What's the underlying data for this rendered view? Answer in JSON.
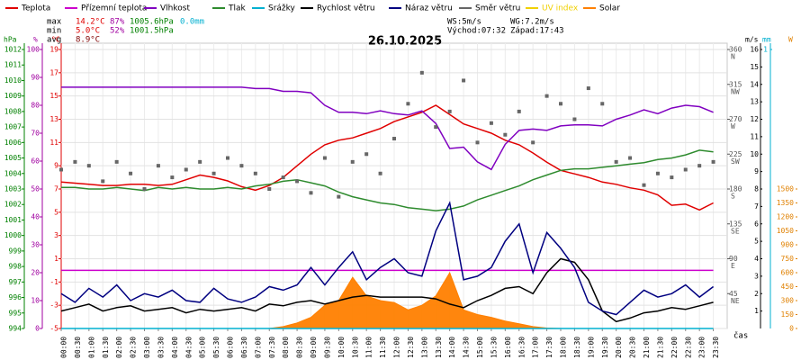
{
  "chart_data": {
    "type": "line",
    "title": "26.10.2025",
    "x_label": "čas",
    "categories": [
      "00:00",
      "00:30",
      "01:00",
      "01:30",
      "02:00",
      "02:30",
      "03:00",
      "03:30",
      "04:00",
      "04:30",
      "05:00",
      "05:30",
      "06:00",
      "06:30",
      "07:00",
      "07:30",
      "08:00",
      "08:30",
      "09:00",
      "09:30",
      "10:00",
      "10:30",
      "11:00",
      "11:30",
      "12:00",
      "12:30",
      "13:00",
      "13:30",
      "14:00",
      "14:30",
      "15:00",
      "15:30",
      "16:00",
      "16:30",
      "17:00",
      "17:30",
      "18:00",
      "18:30",
      "19:00",
      "19:30",
      "20:00",
      "20:30",
      "21:00",
      "21:30",
      "22:00",
      "22:30",
      "23:00",
      "23:30"
    ],
    "grid": true,
    "axes": {
      "hpa": {
        "title": "hPa",
        "color": "#008000",
        "side": "left",
        "lim": [
          994,
          1012
        ],
        "ticks": [
          994,
          995,
          996,
          997,
          998,
          999,
          1000,
          1001,
          1002,
          1003,
          1004,
          1005,
          1006,
          1007,
          1008,
          1009,
          1010,
          1011,
          1012
        ]
      },
      "pct": {
        "title": "%",
        "color": "#a000a0",
        "side": "left",
        "lim": [
          0,
          100
        ],
        "ticks": [
          0,
          10,
          20,
          30,
          40,
          50,
          60,
          70,
          80,
          90,
          100
        ]
      },
      "degc": {
        "title": "°C",
        "color": "#e00000",
        "side": "left",
        "lim": [
          -5,
          19
        ],
        "ticks": [
          -5,
          -3,
          -1,
          1,
          3,
          5,
          7,
          9,
          11,
          13,
          15,
          17,
          19
        ]
      },
      "dir": {
        "color": "#555555",
        "side": "right",
        "lim": [
          0,
          360
        ],
        "ticks": [
          {
            "value": 45,
            "label": "45",
            "compass": "NE"
          },
          {
            "value": 90,
            "label": "90",
            "compass": "E"
          },
          {
            "value": 135,
            "label": "135",
            "compass": "SE"
          },
          {
            "value": 180,
            "label": "180",
            "compass": "S"
          },
          {
            "value": 225,
            "label": "225",
            "compass": "SW"
          },
          {
            "value": 270,
            "label": "270",
            "compass": "W"
          },
          {
            "value": 315,
            "label": "315",
            "compass": "NW"
          },
          {
            "value": 360,
            "label": "360",
            "compass": "N"
          }
        ]
      },
      "ms": {
        "title": "m/s",
        "color": "#000000",
        "side": "right",
        "lim": [
          0,
          16
        ],
        "ticks": [
          1,
          2,
          3,
          4,
          5,
          6,
          7,
          8,
          9,
          10,
          11,
          12,
          13,
          14,
          15,
          16
        ]
      },
      "mm": {
        "title": "mm",
        "color": "#00b0d0",
        "side": "right",
        "lim": [
          0,
          1
        ],
        "ticks": [
          1
        ]
      },
      "w": {
        "title": "W",
        "color": "#e08000",
        "side": "right",
        "lim": [
          0,
          3000
        ],
        "ticks": [
          0,
          150,
          300,
          450,
          600,
          750,
          900,
          1050,
          1200,
          1350,
          1500
        ]
      }
    },
    "series": [
      {
        "name": "Teplota",
        "color": "#e00000",
        "axis": "degc",
        "style": "line",
        "values": [
          7.6,
          7.5,
          7.4,
          7.3,
          7.3,
          7.4,
          7.4,
          7.3,
          7.4,
          7.8,
          8.2,
          8.0,
          7.7,
          7.2,
          6.9,
          7.3,
          8.0,
          9.0,
          10.0,
          10.8,
          11.2,
          11.4,
          11.8,
          12.2,
          12.8,
          13.2,
          13.6,
          14.2,
          13.4,
          12.6,
          12.2,
          11.8,
          11.2,
          10.8,
          10.1,
          9.3,
          8.6,
          8.3,
          8.0,
          7.6,
          7.4,
          7.1,
          6.9,
          6.5,
          5.6,
          5.7,
          5.2,
          5.8
        ]
      },
      {
        "name": "Přízemní teplota",
        "color": "#cc00cc",
        "axis": "degc",
        "style": "line",
        "values": [
          0,
          0,
          0,
          0,
          0,
          0,
          0,
          0,
          0,
          0,
          0,
          0,
          0,
          0,
          0,
          0,
          0,
          0,
          0,
          0,
          0,
          0,
          0,
          0,
          0,
          0,
          0,
          0,
          0,
          0,
          0,
          0,
          0,
          0,
          0,
          0,
          0,
          0,
          0,
          0,
          0,
          0,
          0,
          0,
          0,
          0,
          0,
          0
        ]
      },
      {
        "name": "Vlhkost",
        "color": "#8000c0",
        "axis": "pct",
        "style": "line",
        "values": [
          86.5,
          86.5,
          86.5,
          86.5,
          86.5,
          86.5,
          86.5,
          86.5,
          86.5,
          86.5,
          86.5,
          86.5,
          86.5,
          86.5,
          86,
          86,
          85,
          85,
          84.5,
          80,
          77.5,
          77.5,
          77,
          78,
          77,
          76.5,
          78,
          73.5,
          64.5,
          65,
          59.7,
          57,
          66,
          71,
          71.5,
          71,
          72.6,
          73,
          73,
          72.6,
          75,
          76.5,
          78.4,
          77,
          79,
          80,
          79.5,
          77.5
        ]
      },
      {
        "name": "Tlak",
        "color": "#2e8b2e",
        "axis": "hpa",
        "style": "line",
        "values": [
          1003.1,
          1003.1,
          1003.0,
          1003.0,
          1003.1,
          1003.0,
          1002.9,
          1003.1,
          1003.0,
          1003.1,
          1003.0,
          1003.0,
          1003.1,
          1003.0,
          1003.2,
          1003.3,
          1003.5,
          1003.6,
          1003.4,
          1003.2,
          1002.8,
          1002.5,
          1002.3,
          1002.1,
          1002.0,
          1001.8,
          1001.7,
          1001.6,
          1001.7,
          1001.9,
          1002.3,
          1002.6,
          1002.9,
          1003.2,
          1003.6,
          1003.9,
          1004.2,
          1004.3,
          1004.3,
          1004.4,
          1004.5,
          1004.6,
          1004.7,
          1004.9,
          1005.0,
          1005.2,
          1005.5,
          1005.4
        ]
      },
      {
        "name": "Srážky",
        "color": "#00b0d0",
        "axis": "mm",
        "style": "line",
        "values": [
          0,
          0,
          0,
          0,
          0,
          0,
          0,
          0,
          0,
          0,
          0,
          0,
          0,
          0,
          0,
          0,
          0,
          0,
          0,
          0,
          0,
          0,
          0,
          0,
          0,
          0,
          0,
          0,
          0,
          0,
          0,
          0,
          0,
          0,
          0,
          0,
          0,
          0,
          0,
          0,
          0,
          0,
          0,
          0,
          0,
          0,
          0,
          0
        ]
      },
      {
        "name": "Rychlost větru",
        "color": "#000000",
        "axis": "ms",
        "style": "line",
        "values": [
          1.0,
          1.2,
          1.4,
          1.0,
          1.2,
          1.3,
          1.0,
          1.1,
          1.2,
          0.9,
          1.1,
          1.0,
          1.1,
          1.2,
          1.0,
          1.4,
          1.3,
          1.5,
          1.6,
          1.4,
          1.6,
          1.8,
          1.9,
          1.8,
          1.8,
          1.8,
          1.8,
          1.7,
          1.4,
          1.2,
          1.6,
          1.9,
          2.3,
          2.4,
          2.0,
          3.2,
          4.0,
          3.8,
          2.8,
          1.0,
          0.4,
          0.6,
          0.9,
          1.0,
          1.2,
          1.1,
          1.3,
          1.5
        ]
      },
      {
        "name": "Náraz větru",
        "color": "#000080",
        "axis": "ms",
        "style": "line",
        "values": [
          2.0,
          1.5,
          2.3,
          1.8,
          2.5,
          1.6,
          2.0,
          1.8,
          2.2,
          1.6,
          1.5,
          2.3,
          1.7,
          1.5,
          1.8,
          2.4,
          2.2,
          2.5,
          3.5,
          2.5,
          3.5,
          4.4,
          2.8,
          3.5,
          4.0,
          3.2,
          3.0,
          5.6,
          7.2,
          2.8,
          3.0,
          3.5,
          5.0,
          6.0,
          3.2,
          5.5,
          4.6,
          3.5,
          1.5,
          1.0,
          0.8,
          1.5,
          2.2,
          1.8,
          2.0,
          2.5,
          1.8,
          2.4
        ]
      },
      {
        "name": "Směr větru",
        "color": "#666666",
        "axis": "dir",
        "style": "points",
        "values": [
          205,
          215,
          210,
          190,
          215,
          200,
          180,
          210,
          195,
          205,
          215,
          200,
          220,
          210,
          200,
          180,
          195,
          190,
          175,
          220,
          170,
          215,
          225,
          200,
          245,
          290,
          330,
          260,
          280,
          320,
          240,
          265,
          250,
          280,
          240,
          300,
          290,
          270,
          310,
          290,
          215,
          220,
          185,
          200,
          195,
          205,
          210,
          215
        ]
      },
      {
        "name": "UV index",
        "color": "#f0d000",
        "axis": "w",
        "style": "line",
        "values": [
          null,
          null,
          null,
          null,
          null,
          null,
          null,
          null,
          null,
          null,
          null,
          null,
          null,
          null,
          null,
          null,
          null,
          null,
          null,
          null,
          null,
          null,
          null,
          null,
          null,
          null,
          null,
          null,
          null,
          null,
          null,
          null,
          null,
          null,
          null,
          null,
          null,
          null,
          null,
          null,
          null,
          null,
          null,
          null,
          null,
          null,
          null,
          null
        ]
      },
      {
        "name": "Solar",
        "color": "#ff8000",
        "axis": "w",
        "style": "area",
        "values": [
          0,
          0,
          0,
          0,
          0,
          0,
          0,
          0,
          0,
          0,
          0,
          0,
          0,
          0,
          0,
          0,
          20,
          60,
          120,
          250,
          300,
          550,
          350,
          300,
          280,
          200,
          250,
          350,
          600,
          200,
          150,
          120,
          80,
          50,
          20,
          5,
          0,
          0,
          0,
          0,
          0,
          0,
          0,
          0,
          0,
          0,
          0,
          0
        ]
      }
    ],
    "stats": [
      {
        "label": "max",
        "temp": "14.2°C",
        "hum": "87%",
        "press": "1005.6hPa",
        "rain": "0.0mm"
      },
      {
        "label": "min",
        "temp": "5.0°C",
        "hum": "52%",
        "press": "1001.5hPa"
      },
      {
        "label": "avg",
        "temp": "8.9°C"
      }
    ],
    "info": {
      "ws": "WS:5m/s",
      "sunrise": "Východ:07:32",
      "wg": "WG:7.2m/s",
      "sunset": "Západ:17:43"
    }
  }
}
